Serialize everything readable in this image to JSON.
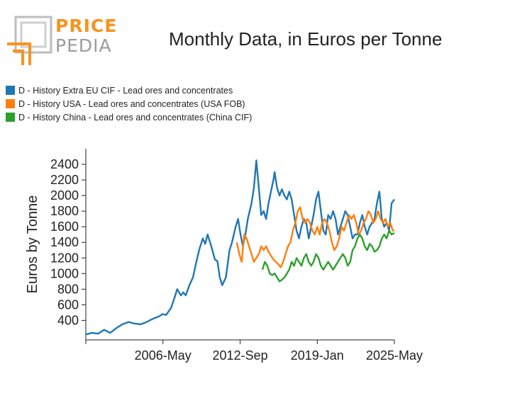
{
  "logo": {
    "word1": "PRICE",
    "word2": "PEDIA",
    "orange": "#f7941d",
    "grey": "#9a9a9a"
  },
  "chart_data": {
    "type": "line",
    "title": "Monthly Data, in Euros per Tonne",
    "xlabel": "",
    "ylabel": "Euros by Tonne",
    "x_ticks": [
      {
        "label": "",
        "year": 2000
      },
      {
        "label": "2006-May",
        "year": 2006.33
      },
      {
        "label": "2012-Sep",
        "year": 2012.67
      },
      {
        "label": "2019-Jan",
        "year": 2019.0
      },
      {
        "label": "2025-May",
        "year": 2025.33
      }
    ],
    "y_ticks": [
      400,
      600,
      800,
      1000,
      1200,
      1400,
      1600,
      1800,
      2000,
      2200,
      2400
    ],
    "xlim": [
      2000,
      2025.33
    ],
    "ylim": [
      150,
      2600
    ],
    "series": [
      {
        "name": "D - History Extra EU CIF - Lead ores and concentrates",
        "color": "#1f77b4",
        "points": [
          [
            2000.0,
            220
          ],
          [
            2000.5,
            240
          ],
          [
            2001.0,
            230
          ],
          [
            2001.5,
            280
          ],
          [
            2002.0,
            240
          ],
          [
            2002.5,
            300
          ],
          [
            2003.0,
            350
          ],
          [
            2003.5,
            380
          ],
          [
            2004.0,
            360
          ],
          [
            2004.5,
            350
          ],
          [
            2005.0,
            380
          ],
          [
            2005.5,
            420
          ],
          [
            2006.0,
            450
          ],
          [
            2006.3,
            480
          ],
          [
            2006.6,
            470
          ],
          [
            2007.0,
            560
          ],
          [
            2007.3,
            700
          ],
          [
            2007.5,
            800
          ],
          [
            2007.8,
            720
          ],
          [
            2008.0,
            760
          ],
          [
            2008.2,
            720
          ],
          [
            2008.5,
            850
          ],
          [
            2008.8,
            950
          ],
          [
            2009.0,
            1100
          ],
          [
            2009.3,
            1300
          ],
          [
            2009.6,
            1450
          ],
          [
            2009.8,
            1380
          ],
          [
            2010.0,
            1500
          ],
          [
            2010.3,
            1350
          ],
          [
            2010.6,
            1180
          ],
          [
            2010.8,
            1160
          ],
          [
            2011.0,
            950
          ],
          [
            2011.2,
            850
          ],
          [
            2011.5,
            950
          ],
          [
            2011.8,
            1300
          ],
          [
            2012.0,
            1400
          ],
          [
            2012.3,
            1600
          ],
          [
            2012.5,
            1700
          ],
          [
            2012.7,
            1500
          ],
          [
            2012.9,
            1350
          ],
          [
            2013.1,
            1500
          ],
          [
            2013.3,
            1700
          ],
          [
            2013.6,
            1900
          ],
          [
            2013.8,
            2100
          ],
          [
            2014.0,
            2450
          ],
          [
            2014.2,
            2100
          ],
          [
            2014.4,
            1750
          ],
          [
            2014.6,
            1800
          ],
          [
            2014.8,
            1700
          ],
          [
            2015.0,
            1900
          ],
          [
            2015.2,
            2050
          ],
          [
            2015.4,
            2200
          ],
          [
            2015.5,
            2300
          ],
          [
            2015.7,
            2100
          ],
          [
            2015.9,
            2000
          ],
          [
            2016.1,
            2080
          ],
          [
            2016.3,
            2000
          ],
          [
            2016.5,
            1950
          ],
          [
            2016.7,
            2050
          ],
          [
            2016.9,
            1950
          ],
          [
            2017.1,
            1750
          ],
          [
            2017.3,
            1550
          ],
          [
            2017.5,
            1450
          ],
          [
            2017.7,
            1600
          ],
          [
            2017.9,
            1700
          ],
          [
            2018.1,
            1650
          ],
          [
            2018.3,
            1450
          ],
          [
            2018.5,
            1600
          ],
          [
            2018.7,
            1750
          ],
          [
            2018.9,
            1950
          ],
          [
            2019.1,
            2050
          ],
          [
            2019.3,
            1800
          ],
          [
            2019.5,
            1550
          ],
          [
            2019.7,
            1500
          ],
          [
            2019.9,
            1750
          ],
          [
            2020.1,
            1700
          ],
          [
            2020.3,
            1800
          ],
          [
            2020.5,
            1700
          ],
          [
            2020.7,
            1500
          ],
          [
            2020.9,
            1600
          ],
          [
            2021.1,
            1700
          ],
          [
            2021.3,
            1800
          ],
          [
            2021.5,
            1750
          ],
          [
            2021.7,
            1600
          ],
          [
            2021.9,
            1450
          ],
          [
            2022.1,
            1500
          ],
          [
            2022.3,
            1500
          ],
          [
            2022.5,
            1650
          ],
          [
            2022.7,
            1750
          ],
          [
            2022.9,
            1600
          ],
          [
            2023.1,
            1500
          ],
          [
            2023.3,
            1600
          ],
          [
            2023.5,
            1650
          ],
          [
            2023.7,
            1700
          ],
          [
            2023.9,
            1900
          ],
          [
            2024.1,
            2050
          ],
          [
            2024.3,
            1700
          ],
          [
            2024.5,
            1600
          ],
          [
            2024.7,
            1650
          ],
          [
            2024.9,
            1550
          ],
          [
            2025.1,
            1900
          ],
          [
            2025.33,
            1950
          ]
        ]
      },
      {
        "name": "D - History USA - Lead ores and concentrates (USA FOB)",
        "color": "#ff7f0e",
        "points": [
          [
            2012.4,
            1400
          ],
          [
            2012.6,
            1250
          ],
          [
            2012.8,
            1150
          ],
          [
            2013.0,
            1500
          ],
          [
            2013.2,
            1450
          ],
          [
            2013.4,
            1350
          ],
          [
            2013.6,
            1250
          ],
          [
            2013.8,
            1150
          ],
          [
            2014.0,
            1200
          ],
          [
            2014.2,
            1250
          ],
          [
            2014.4,
            1350
          ],
          [
            2014.6,
            1300
          ],
          [
            2014.8,
            1350
          ],
          [
            2015.0,
            1280
          ],
          [
            2015.2,
            1230
          ],
          [
            2015.4,
            1180
          ],
          [
            2015.6,
            1150
          ],
          [
            2015.8,
            1120
          ],
          [
            2016.0,
            1080
          ],
          [
            2016.2,
            1150
          ],
          [
            2016.4,
            1250
          ],
          [
            2016.6,
            1350
          ],
          [
            2016.8,
            1400
          ],
          [
            2017.0,
            1550
          ],
          [
            2017.2,
            1650
          ],
          [
            2017.4,
            1800
          ],
          [
            2017.6,
            1850
          ],
          [
            2017.8,
            1700
          ],
          [
            2018.0,
            1650
          ],
          [
            2018.2,
            1700
          ],
          [
            2018.4,
            1650
          ],
          [
            2018.6,
            1550
          ],
          [
            2018.8,
            1500
          ],
          [
            2019.0,
            1600
          ],
          [
            2019.2,
            1500
          ],
          [
            2019.4,
            1650
          ],
          [
            2019.6,
            1700
          ],
          [
            2019.8,
            1650
          ],
          [
            2020.0,
            1550
          ],
          [
            2020.2,
            1400
          ],
          [
            2020.4,
            1300
          ],
          [
            2020.6,
            1350
          ],
          [
            2020.8,
            1450
          ],
          [
            2021.0,
            1600
          ],
          [
            2021.2,
            1550
          ],
          [
            2021.4,
            1650
          ],
          [
            2021.6,
            1750
          ],
          [
            2021.8,
            1700
          ],
          [
            2022.0,
            1750
          ],
          [
            2022.2,
            1650
          ],
          [
            2022.4,
            1500
          ],
          [
            2022.6,
            1550
          ],
          [
            2022.8,
            1650
          ],
          [
            2023.0,
            1700
          ],
          [
            2023.2,
            1800
          ],
          [
            2023.4,
            1750
          ],
          [
            2023.6,
            1650
          ],
          [
            2023.8,
            1700
          ],
          [
            2024.0,
            1800
          ],
          [
            2024.2,
            1700
          ],
          [
            2024.4,
            1650
          ],
          [
            2024.6,
            1700
          ],
          [
            2024.8,
            1600
          ],
          [
            2025.0,
            1650
          ],
          [
            2025.2,
            1550
          ],
          [
            2025.33,
            1550
          ]
        ]
      },
      {
        "name": "D - History China - Lead ores and concentrates (China CIF)",
        "color": "#2ca02c",
        "points": [
          [
            2014.5,
            1050
          ],
          [
            2014.7,
            1150
          ],
          [
            2014.9,
            1100
          ],
          [
            2015.1,
            1000
          ],
          [
            2015.3,
            980
          ],
          [
            2015.5,
            1000
          ],
          [
            2015.7,
            950
          ],
          [
            2015.9,
            900
          ],
          [
            2016.1,
            920
          ],
          [
            2016.3,
            950
          ],
          [
            2016.5,
            1000
          ],
          [
            2016.7,
            1050
          ],
          [
            2016.9,
            1150
          ],
          [
            2017.1,
            1100
          ],
          [
            2017.3,
            1200
          ],
          [
            2017.5,
            1150
          ],
          [
            2017.7,
            1100
          ],
          [
            2017.9,
            1200
          ],
          [
            2018.1,
            1250
          ],
          [
            2018.3,
            1150
          ],
          [
            2018.5,
            1100
          ],
          [
            2018.7,
            1150
          ],
          [
            2018.9,
            1250
          ],
          [
            2019.1,
            1200
          ],
          [
            2019.3,
            1100
          ],
          [
            2019.5,
            1050
          ],
          [
            2019.7,
            1100
          ],
          [
            2019.9,
            1150
          ],
          [
            2020.1,
            1100
          ],
          [
            2020.3,
            1050
          ],
          [
            2020.5,
            1100
          ],
          [
            2020.7,
            1150
          ],
          [
            2020.9,
            1200
          ],
          [
            2021.1,
            1250
          ],
          [
            2021.3,
            1200
          ],
          [
            2021.5,
            1100
          ],
          [
            2021.7,
            1150
          ],
          [
            2021.9,
            1300
          ],
          [
            2022.1,
            1350
          ],
          [
            2022.3,
            1450
          ],
          [
            2022.5,
            1500
          ],
          [
            2022.7,
            1450
          ],
          [
            2022.9,
            1350
          ],
          [
            2023.1,
            1300
          ],
          [
            2023.3,
            1380
          ],
          [
            2023.5,
            1350
          ],
          [
            2023.7,
            1280
          ],
          [
            2023.9,
            1300
          ],
          [
            2024.1,
            1350
          ],
          [
            2024.3,
            1450
          ],
          [
            2024.5,
            1500
          ],
          [
            2024.7,
            1450
          ],
          [
            2024.9,
            1550
          ],
          [
            2025.1,
            1500
          ],
          [
            2025.33,
            1520
          ]
        ]
      }
    ]
  }
}
